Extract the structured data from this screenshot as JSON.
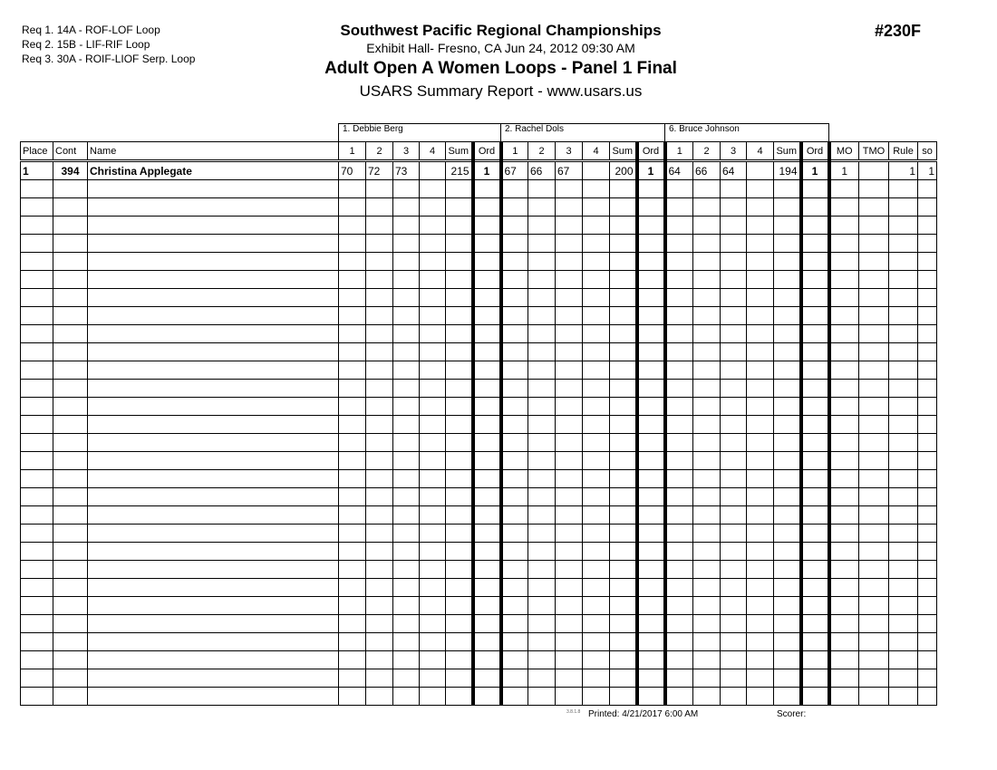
{
  "requirements": [
    "Req  1.  14A - ROF-LOF Loop",
    "Req  2.  15B - LIF-RIF Loop",
    "Req  3.  30A - ROIF-LIOF Serp. Loop"
  ],
  "header": {
    "title": "Southwest Pacific Regional Championships",
    "location": "Exhibit Hall-  Fresno, CA  Jun 24, 2012  09:30 AM",
    "event": "Adult Open A Women Loops - Panel 1 Final",
    "report": "USARS Summary Report - www.usars.us",
    "event_number": "#230F"
  },
  "judges": [
    "1.  Debbie Berg",
    "2.  Rachel Dols",
    "6.  Bruce Johnson"
  ],
  "columns": {
    "place": "Place",
    "cont": "Cont",
    "name": "Name",
    "judge_cols": [
      "1",
      "2",
      "3",
      "4",
      "Sum",
      "Ord"
    ],
    "mo": "MO",
    "tmo": "TMO",
    "rule": "Rule",
    "so": "so"
  },
  "rows": [
    {
      "place": "1",
      "cont": "394",
      "name": "Christina Applegate",
      "judges": [
        [
          "70",
          "72",
          "73",
          "",
          "215",
          "1"
        ],
        [
          "67",
          "66",
          "67",
          "",
          "200",
          "1"
        ],
        [
          "64",
          "66",
          "64",
          "",
          "194",
          "1"
        ]
      ],
      "mo": "1",
      "tmo": "",
      "rule": "1",
      "so": "1"
    }
  ],
  "blank_rows": 29,
  "footer": {
    "version": "3.8.1.8",
    "printed": "Printed:  4/21/2017  6:00 AM",
    "scorer": "Scorer:"
  }
}
